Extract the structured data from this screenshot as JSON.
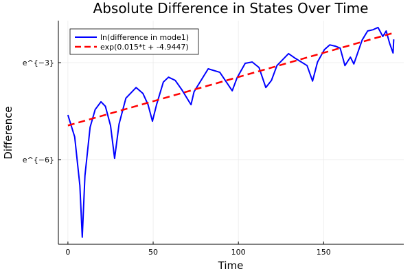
{
  "chart_data": {
    "type": "line",
    "title": "Absolute Difference in States Over Time",
    "xlabel": "Time",
    "ylabel": "Difference",
    "xlim": [
      -5.6,
      197
    ],
    "ylim_ln": [
      -8.62,
      -1.7
    ],
    "y_scale": "log (natural)",
    "grid": true,
    "legend_position": "top-left",
    "x_ticks": [
      {
        "value": 0,
        "label": "0"
      },
      {
        "value": 50,
        "label": "50"
      },
      {
        "value": 100,
        "label": "100"
      },
      {
        "value": 150,
        "label": "150"
      }
    ],
    "y_ticks": [
      {
        "value_ln": -3,
        "label": "e^{−3}"
      },
      {
        "value_ln": -6,
        "label": "e^{−6}"
      }
    ],
    "series": [
      {
        "name": "ln(difference in mode1)",
        "color": "#0000ff",
        "style": "solid",
        "t": [
          0,
          4,
          7,
          8.4,
          10,
          13,
          16,
          19.4,
          22,
          25,
          27.4,
          30,
          34,
          40,
          44,
          47,
          49.6,
          52,
          56,
          59,
          63,
          67,
          71,
          72.2,
          74,
          82.3,
          89.1,
          96.4,
          99.2,
          104,
          108.1,
          112.1,
          116.1,
          119.4,
          122.6,
          129.4,
          133.5,
          140.3,
          143.5,
          146.4,
          150.4,
          153.6,
          156.9,
          159.7,
          162.5,
          165.7,
          167.7,
          172.6,
          175.8,
          179,
          181.9,
          184.7,
          186.7,
          188.7,
          190.7,
          191.1
        ],
        "ln_y": [
          -4.62,
          -5.3,
          -6.8,
          -8.4,
          -6.5,
          -5.0,
          -4.45,
          -4.21,
          -4.35,
          -4.95,
          -5.96,
          -4.9,
          -4.1,
          -3.77,
          -3.95,
          -4.3,
          -4.81,
          -4.3,
          -3.6,
          -3.45,
          -3.55,
          -3.85,
          -4.2,
          -4.3,
          -3.9,
          -3.19,
          -3.3,
          -3.87,
          -3.47,
          -3.02,
          -2.98,
          -3.15,
          -3.77,
          -3.55,
          -3.09,
          -2.72,
          -2.87,
          -3.09,
          -3.57,
          -2.98,
          -2.6,
          -2.45,
          -2.49,
          -2.55,
          -3.09,
          -2.83,
          -3.04,
          -2.3,
          -2.02,
          -1.98,
          -1.91,
          -2.19,
          -2.02,
          -2.4,
          -2.7,
          -2.28
        ]
      },
      {
        "name": "exp(0.015*t + -4.9447)",
        "color": "#ff0000",
        "style": "dashed",
        "slope": 0.015,
        "intercept": -4.9447,
        "t_range": [
          0,
          190
        ]
      }
    ]
  }
}
